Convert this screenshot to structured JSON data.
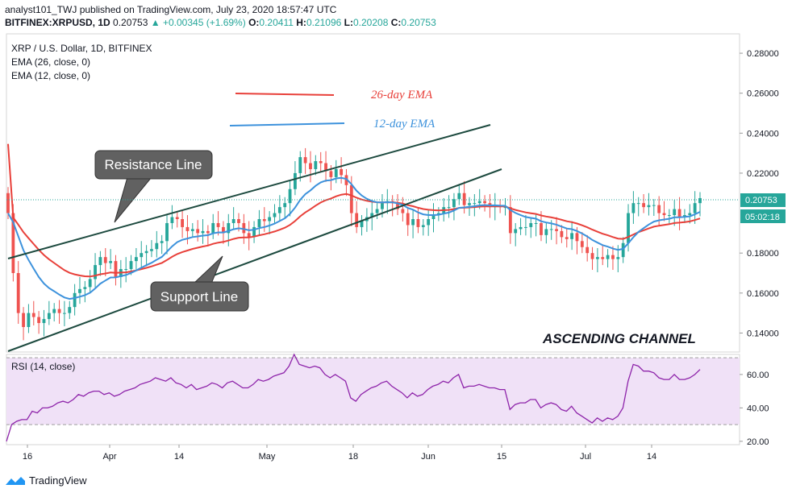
{
  "header": {
    "line1": "analyst101_TWJ published on TradingView.com, July 23, 2020 18:57:47 UTC",
    "symbol": "BITFINEX:XRPUSD, 1D",
    "last": "0.20753",
    "change": "▲ +0.00345 (+1.69%)",
    "o_label": "O:",
    "o_val": "0.20411",
    "h_label": "H:",
    "h_val": "0.21096",
    "l_label": "L:",
    "l_val": "0.20208",
    "c_label": "C:",
    "c_val": "0.20753"
  },
  "legend": {
    "title": "XRP / U.S. Dollar, 1D, BITFINEX",
    "ema26": "EMA (26, close, 0)",
    "ema12": "EMA (12, close, 0)",
    "rsi": "RSI (14, close)"
  },
  "annotations": {
    "ema26_label": "26-day EMA",
    "ema12_label": "12-day EMA",
    "resistance": "Resistance Line",
    "support": "Support Line",
    "pattern": "ASCENDING CHANNEL"
  },
  "price_tag": {
    "price": "0.20753",
    "countdown": "05:02:18"
  },
  "footer": {
    "brand": "TradingView"
  },
  "colors": {
    "up": "#26a69a",
    "down": "#ef5350",
    "ema26": "#e8403a",
    "ema12": "#3d92dc",
    "rsi_line": "#8e24aa",
    "rsi_band": "#f0e1f7",
    "channel": "#1d4a3f",
    "callout_bg": "#616161"
  },
  "chart_data": [
    {
      "type": "candlestick",
      "title": "XRP / U.S. Dollar, 1D, BITFINEX",
      "x_ticks": [
        "16",
        "Apr",
        "14",
        "May",
        "18",
        "Jun",
        "15",
        "Jul",
        "14"
      ],
      "y_ticks": [
        "0.28000",
        "0.26000",
        "0.24000",
        "0.22000",
        "0.18000",
        "0.16000",
        "0.14000"
      ],
      "ylim": [
        0.1305,
        0.2897
      ],
      "ohlc_close": [
        0.2,
        0.17,
        0.15,
        0.143,
        0.15,
        0.148,
        0.145,
        0.147,
        0.15,
        0.152,
        0.15,
        0.15,
        0.153,
        0.16,
        0.162,
        0.163,
        0.167,
        0.174,
        0.178,
        0.175,
        0.176,
        0.168,
        0.172,
        0.172,
        0.176,
        0.178,
        0.18,
        0.181,
        0.182,
        0.185,
        0.186,
        0.195,
        0.198,
        0.197,
        0.193,
        0.191,
        0.192,
        0.19,
        0.191,
        0.19,
        0.195,
        0.193,
        0.19,
        0.195,
        0.197,
        0.195,
        0.19,
        0.188,
        0.193,
        0.197,
        0.196,
        0.198,
        0.2,
        0.203,
        0.205,
        0.212,
        0.22,
        0.228,
        0.225,
        0.222,
        0.226,
        0.225,
        0.221,
        0.218,
        0.222,
        0.219,
        0.214,
        0.2,
        0.193,
        0.196,
        0.198,
        0.2,
        0.202,
        0.205,
        0.206,
        0.205,
        0.202,
        0.2,
        0.194,
        0.197,
        0.193,
        0.194,
        0.197,
        0.199,
        0.2,
        0.203,
        0.203,
        0.207,
        0.21,
        0.204,
        0.205,
        0.205,
        0.206,
        0.205,
        0.203,
        0.204,
        0.203,
        0.203,
        0.19,
        0.192,
        0.193,
        0.193,
        0.195,
        0.195,
        0.189,
        0.192,
        0.192,
        0.191,
        0.188,
        0.187,
        0.19,
        0.186,
        0.183,
        0.18,
        0.177,
        0.178,
        0.177,
        0.179,
        0.177,
        0.178,
        0.185,
        0.2,
        0.205,
        0.205,
        0.203,
        0.204,
        0.204,
        0.2,
        0.199,
        0.199,
        0.202,
        0.198,
        0.199,
        0.2,
        0.205,
        0.2075
      ],
      "last_price": 0.20753
    },
    {
      "type": "line",
      "title": "RSI (14, close)",
      "y_ticks": [
        "60.00",
        "40.00",
        "20.00"
      ],
      "ylim": [
        18,
        72
      ],
      "band": [
        30,
        70
      ],
      "values": [
        20,
        30,
        32,
        33,
        33,
        38,
        37,
        40,
        40,
        41,
        43,
        44,
        43,
        45,
        48,
        47,
        49,
        50,
        50,
        48,
        49,
        47,
        48,
        50,
        51,
        52,
        54,
        55,
        56,
        58,
        57,
        56,
        58,
        55,
        54,
        52,
        54,
        51,
        52,
        53,
        55,
        54,
        52,
        55,
        56,
        54,
        52,
        52,
        54,
        57,
        56,
        57,
        59,
        60,
        61,
        65,
        72,
        66,
        65,
        64,
        65,
        64,
        60,
        58,
        60,
        58,
        56,
        46,
        44,
        48,
        50,
        52,
        53,
        55,
        56,
        53,
        51,
        49,
        46,
        49,
        47,
        48,
        51,
        53,
        54,
        56,
        55,
        58,
        60,
        52,
        53,
        53,
        54,
        53,
        52,
        52,
        51,
        51,
        39,
        42,
        43,
        43,
        45,
        45,
        40,
        42,
        43,
        42,
        39,
        38,
        41,
        37,
        35,
        33,
        31,
        34,
        32,
        34,
        33,
        35,
        40,
        56,
        66,
        65,
        62,
        62,
        61,
        58,
        57,
        57,
        60,
        57,
        57,
        58,
        60,
        63
      ],
      "xlabel": "",
      "ylabel": ""
    }
  ]
}
